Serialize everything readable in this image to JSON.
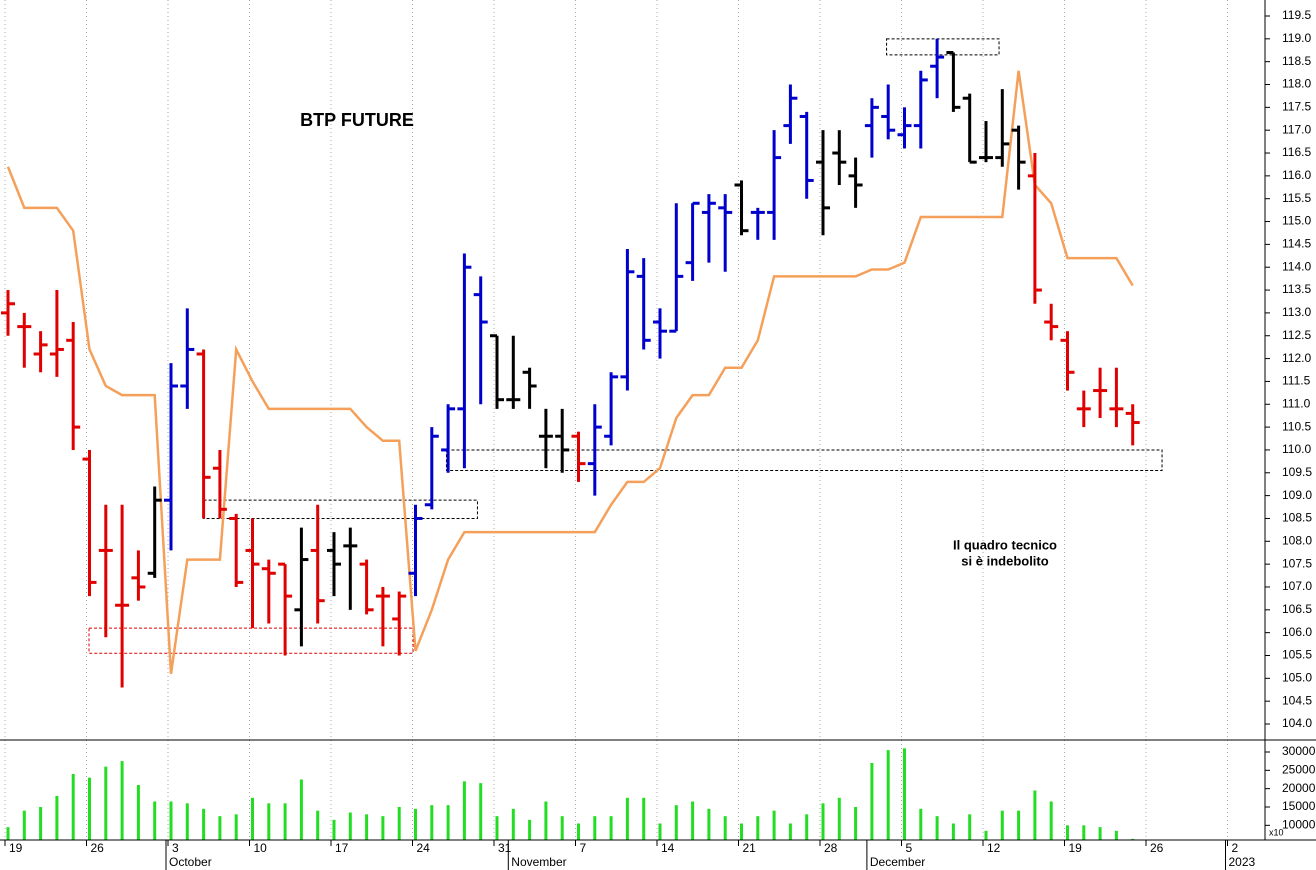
{
  "chart_data": [
    {
      "type": "ohlc",
      "title": "BTP FUTURE",
      "annotation": [
        "Il quadro tecnico",
        "si è indebolito"
      ],
      "annotation_color": "#e00000",
      "categories": [
        "19",
        null,
        null,
        null,
        null,
        "26",
        null,
        null,
        null,
        null,
        "3",
        null,
        null,
        null,
        null,
        "10",
        null,
        null,
        null,
        null,
        "17",
        null,
        null,
        null,
        null,
        "24",
        null,
        null,
        null,
        null,
        "31",
        null,
        null,
        null,
        null,
        "7",
        null,
        null,
        null,
        null,
        "14",
        null,
        null,
        null,
        null,
        "21",
        null,
        null,
        null,
        null,
        "28",
        null,
        null,
        null,
        null,
        "5",
        null,
        null,
        null,
        null,
        "12",
        null,
        null,
        null,
        null,
        "19",
        null,
        null,
        null,
        null,
        "26",
        null,
        null,
        null,
        null,
        "2",
        null
      ],
      "months": [
        null,
        null,
        null,
        null,
        null,
        null,
        null,
        null,
        null,
        null,
        "October",
        null,
        null,
        null,
        null,
        null,
        null,
        null,
        null,
        null,
        null,
        null,
        null,
        null,
        null,
        null,
        null,
        null,
        null,
        null,
        null,
        "November",
        null,
        null,
        null,
        null,
        null,
        null,
        null,
        null,
        null,
        null,
        null,
        null,
        null,
        null,
        null,
        null,
        null,
        null,
        null,
        null,
        null,
        "December",
        null,
        null,
        null,
        null,
        null,
        null,
        null,
        null,
        null,
        null,
        null,
        null,
        null,
        null,
        null,
        null,
        null,
        null,
        null,
        null,
        null,
        "2023",
        null
      ],
      "open": [
        113.0,
        112.7,
        112.1,
        112.1,
        112.4,
        109.8,
        107.8,
        106.6,
        107.2,
        107.3,
        108.9,
        111.4,
        112.1,
        109.6,
        108.5,
        107.8,
        107.4,
        107.5,
        106.5,
        107.8,
        107.8,
        107.9,
        107.5,
        106.8,
        106.3,
        107.3,
        108.8,
        110.0,
        110.9,
        113.4,
        112.5,
        111.1,
        111.7,
        110.3,
        110.3,
        110.3,
        109.7,
        110.3,
        111.6,
        113.8,
        112.8,
        112.6,
        114.1,
        115.2,
        115.3,
        115.8,
        115.2,
        115.2,
        117.1,
        117.3,
        116.3,
        116.5,
        116.0,
        117.1,
        117.3,
        116.9,
        117.1,
        118.4,
        118.7,
        117.7,
        116.4,
        116.4,
        117.0,
        116.0,
        112.8,
        112.4,
        110.9,
        111.3,
        110.9,
        110.8,
        null,
        null,
        null,
        null,
        null,
        null,
        null
      ],
      "high": [
        113.5,
        113.0,
        112.6,
        113.5,
        112.8,
        110.0,
        108.8,
        108.8,
        107.8,
        109.2,
        111.9,
        113.1,
        112.2,
        110.0,
        108.6,
        108.5,
        107.6,
        107.5,
        108.3,
        108.8,
        108.2,
        108.3,
        107.6,
        107.0,
        106.9,
        108.8,
        110.5,
        111.0,
        114.3,
        113.8,
        112.5,
        112.5,
        111.8,
        110.9,
        110.9,
        110.4,
        111.0,
        111.7,
        114.4,
        114.2,
        113.1,
        115.4,
        115.4,
        115.6,
        115.6,
        115.9,
        115.3,
        117.0,
        118.0,
        117.4,
        117.0,
        117.0,
        116.4,
        117.7,
        118.0,
        117.5,
        118.3,
        119.0,
        118.7,
        117.8,
        117.2,
        117.9,
        117.1,
        116.5,
        113.2,
        112.6,
        111.3,
        111.8,
        111.8,
        111.0,
        null,
        null,
        null,
        null,
        null,
        null,
        null
      ],
      "low": [
        112.5,
        111.8,
        111.7,
        111.6,
        110.0,
        106.8,
        105.9,
        104.8,
        106.7,
        107.2,
        107.8,
        110.9,
        108.5,
        108.5,
        107.0,
        106.1,
        106.2,
        105.5,
        105.7,
        106.2,
        106.8,
        106.5,
        106.4,
        105.7,
        105.5,
        106.8,
        108.7,
        109.5,
        109.6,
        111.0,
        110.9,
        110.9,
        110.9,
        109.6,
        109.5,
        109.3,
        109.0,
        110.1,
        111.3,
        112.2,
        112.0,
        112.6,
        113.7,
        114.1,
        113.9,
        114.7,
        114.6,
        114.6,
        116.7,
        115.5,
        114.7,
        115.8,
        115.3,
        116.4,
        116.8,
        116.6,
        116.6,
        117.7,
        117.4,
        116.3,
        116.3,
        116.2,
        115.7,
        113.2,
        112.4,
        111.3,
        110.5,
        110.7,
        110.5,
        110.1,
        null,
        null,
        null,
        null,
        null,
        null,
        null
      ],
      "close": [
        113.2,
        112.7,
        112.3,
        112.2,
        110.5,
        107.1,
        107.8,
        106.6,
        107.0,
        108.9,
        111.4,
        112.2,
        109.4,
        108.7,
        107.1,
        107.5,
        107.3,
        106.8,
        107.6,
        106.7,
        107.5,
        107.9,
        106.5,
        106.8,
        106.8,
        108.5,
        110.3,
        110.9,
        114.0,
        112.8,
        111.1,
        111.1,
        111.4,
        110.3,
        110.0,
        109.7,
        110.5,
        111.6,
        113.9,
        112.4,
        112.6,
        113.8,
        115.4,
        115.4,
        115.2,
        114.8,
        115.2,
        116.4,
        117.7,
        115.9,
        115.3,
        116.3,
        115.8,
        117.5,
        117.0,
        117.1,
        118.1,
        118.6,
        117.5,
        116.3,
        116.4,
        116.7,
        116.3,
        113.5,
        112.7,
        111.7,
        110.9,
        111.3,
        110.9,
        110.6,
        null,
        null,
        null,
        null,
        null,
        null,
        null
      ],
      "colors": [
        "#e00000",
        "#e00000",
        "#e00000",
        "#e00000",
        "#e00000",
        "#e00000",
        "#e00000",
        "#e00000",
        "#e00000",
        "#000000",
        "#0000cc",
        "#0000cc",
        "#e00000",
        "#e00000",
        "#e00000",
        "#e00000",
        "#e00000",
        "#e00000",
        "#000000",
        "#e00000",
        "#000000",
        "#000000",
        "#e00000",
        "#e00000",
        "#e00000",
        "#0000cc",
        "#0000cc",
        "#0000cc",
        "#0000cc",
        "#0000cc",
        "#000000",
        "#000000",
        "#000000",
        "#000000",
        "#000000",
        "#e00000",
        "#0000cc",
        "#0000cc",
        "#0000cc",
        "#0000cc",
        "#0000cc",
        "#0000cc",
        "#0000cc",
        "#0000cc",
        "#0000cc",
        "#000000",
        "#0000cc",
        "#0000cc",
        "#0000cc",
        "#0000cc",
        "#000000",
        "#000000",
        "#000000",
        "#0000cc",
        "#0000cc",
        "#0000cc",
        "#0000cc",
        "#0000cc",
        "#000000",
        "#000000",
        "#000000",
        "#000000",
        "#000000",
        "#e00000",
        "#e00000",
        "#e00000",
        "#e00000",
        "#e00000",
        "#e00000",
        "#e00000",
        null,
        null,
        null,
        null,
        null,
        null,
        null
      ],
      "overlay": {
        "color": "#f5a05a",
        "values": [
          116.2,
          115.3,
          115.3,
          115.3,
          114.8,
          112.2,
          111.4,
          111.2,
          111.2,
          111.2,
          105.1,
          107.6,
          107.6,
          107.6,
          112.2,
          111.5,
          110.9,
          110.9,
          110.9,
          110.9,
          110.9,
          110.9,
          110.5,
          110.2,
          110.2,
          105.6,
          106.5,
          107.6,
          108.2,
          108.2,
          108.2,
          108.2,
          108.2,
          108.2,
          108.2,
          108.2,
          108.2,
          108.8,
          109.3,
          109.3,
          109.6,
          110.7,
          111.2,
          111.2,
          111.8,
          111.8,
          112.4,
          113.8,
          113.8,
          113.8,
          113.8,
          113.8,
          113.8,
          113.95,
          113.95,
          114.1,
          115.1,
          115.1,
          115.1,
          115.1,
          115.1,
          115.1,
          118.3,
          115.8,
          115.4,
          114.2,
          114.2,
          114.2,
          114.2,
          113.6,
          null,
          null,
          null,
          null,
          null,
          null,
          null
        ]
      },
      "zones": [
        {
          "start": 4.97,
          "end": 24.85,
          "low": 105.55,
          "high": 106.1,
          "color": "#e00000"
        },
        {
          "start": 12.0,
          "end": 28.8,
          "low": 108.5,
          "high": 108.9,
          "color": "#000000"
        },
        {
          "start": 26.9,
          "end": 70.8,
          "low": 109.55,
          "high": 110.0,
          "color": "#000000"
        },
        {
          "start": 53.9,
          "end": 60.8,
          "low": 118.65,
          "high": 119.0,
          "color": "#000000"
        }
      ],
      "ylim": [
        103.65,
        119.85
      ],
      "yticks": [
        {
          "value": 104,
          "label": "104.0"
        },
        104.5,
        {
          "value": 105,
          "label": "105.0"
        },
        105.5,
        {
          "value": 106,
          "label": "106.0"
        },
        106.5,
        {
          "value": 107,
          "label": "107.0"
        },
        107.5,
        {
          "value": 108,
          "label": "108.0"
        },
        108.5,
        {
          "value": 109,
          "label": "109.0"
        },
        109.5,
        {
          "value": 110,
          "label": "110.0"
        },
        110.5,
        {
          "value": 111,
          "label": "111.0"
        },
        111.5,
        {
          "value": 112,
          "label": "112.0"
        },
        112.5,
        {
          "value": 113,
          "label": "113.0"
        },
        113.5,
        {
          "value": 114,
          "label": "114.0"
        },
        114.5,
        {
          "value": 115,
          "label": "115.0"
        },
        115.5,
        {
          "value": 116,
          "label": "116.0"
        },
        116.5,
        {
          "value": 117,
          "label": "117.0"
        },
        117.5,
        {
          "value": 118,
          "label": "118.0"
        },
        118.5,
        {
          "value": 119,
          "label": "119.0"
        },
        119.5
      ],
      "grid": true
    },
    {
      "type": "bar",
      "color": "#22dd22",
      "values": [
        9500,
        14000,
        15000,
        18000,
        24000,
        23000,
        26000,
        27500,
        21000,
        16500,
        16500,
        16000,
        14500,
        12500,
        13000,
        17500,
        16000,
        16000,
        22500,
        14000,
        11500,
        13500,
        13000,
        12500,
        15000,
        14500,
        15500,
        15500,
        22000,
        21500,
        12500,
        14500,
        11500,
        16500,
        12500,
        10500,
        12500,
        12500,
        17500,
        17500,
        10500,
        15500,
        16500,
        14500,
        12500,
        10500,
        12500,
        14000,
        10500,
        13000,
        16000,
        17500,
        15000,
        27000,
        30500,
        31000,
        14500,
        12500,
        10500,
        13000,
        8500,
        14000,
        14000,
        19500,
        16500,
        10000,
        10000,
        9500,
        8500,
        6300,
        null,
        null,
        null,
        null,
        null,
        null,
        null
      ],
      "ylim": [
        6000,
        33000
      ],
      "yticks": [
        10000,
        15000,
        20000,
        25000,
        30000
      ],
      "unit_label": "x10"
    }
  ]
}
